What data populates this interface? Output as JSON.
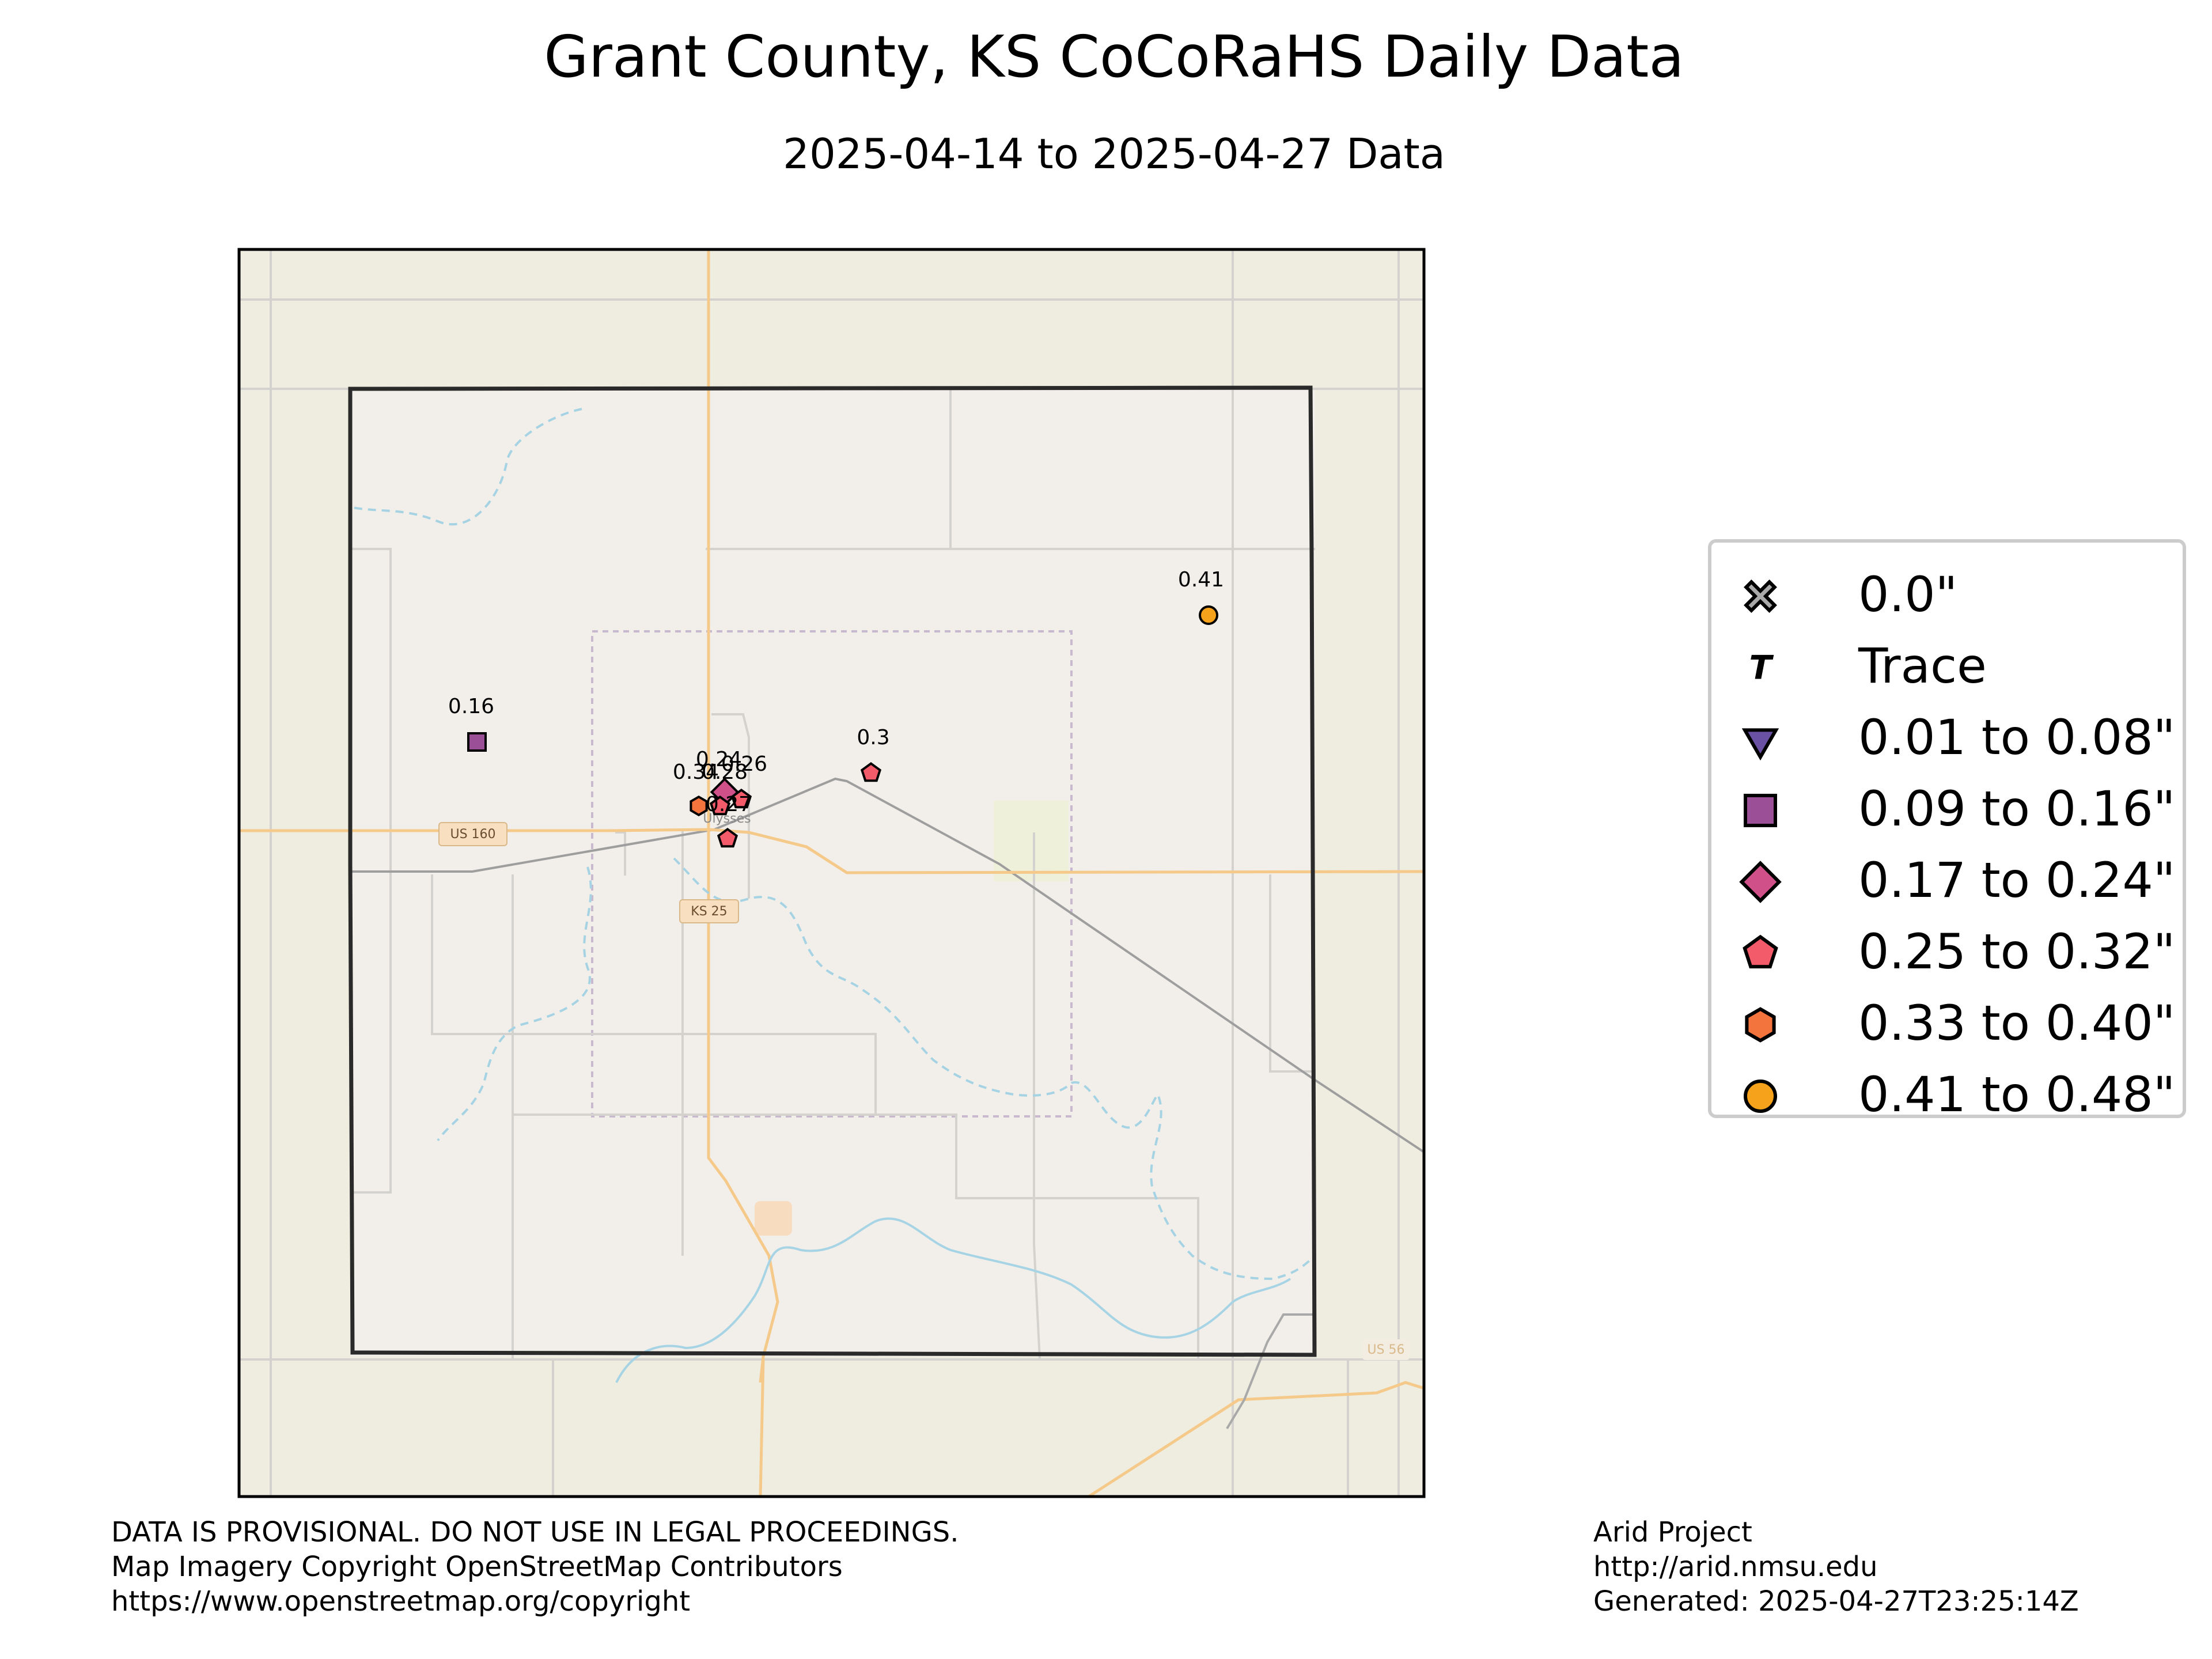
{
  "title": "Grant County, KS CoCoRaHS Daily Data",
  "subtitle": "2025-04-14 to 2025-04-27 Data",
  "map": {
    "road_labels": [
      "US 160",
      "KS 25",
      "US 56"
    ],
    "place_labels": [
      "Ulysses"
    ],
    "stations": [
      {
        "value": 0.41,
        "label": "0.41",
        "category": "0.41 to 0.48\""
      },
      {
        "value": 0.16,
        "label": "0.16",
        "category": "0.09 to 0.16\""
      },
      {
        "value": 0.3,
        "label": "0.3",
        "category": "0.25 to 0.32\""
      },
      {
        "value": 0.24,
        "label": "0.24",
        "category": "0.17 to 0.24\""
      },
      {
        "value": 0.26,
        "label": "0.26",
        "category": "0.25 to 0.32\""
      },
      {
        "value": 0.34,
        "label": "0.34",
        "category": "0.33 to 0.40\""
      },
      {
        "value": 0.28,
        "label": "0.28",
        "category": "0.25 to 0.32\""
      },
      {
        "value": 0.27,
        "label": "0.27",
        "category": "0.25 to 0.32\""
      }
    ]
  },
  "legend": {
    "items": [
      {
        "label": "0.0\"",
        "symbol": "x-cross",
        "color": "#a9a9a9"
      },
      {
        "label": "Trace",
        "symbol": "T",
        "color": "#000000"
      },
      {
        "label": "0.01 to 0.08\"",
        "symbol": "triangle-down",
        "color": "#6a51a3"
      },
      {
        "label": "0.09 to 0.16\"",
        "symbol": "square",
        "color": "#9b4f96"
      },
      {
        "label": "0.17 to 0.24\"",
        "symbol": "diamond",
        "color": "#d0508a"
      },
      {
        "label": "0.25 to 0.32\"",
        "symbol": "pentagon",
        "color": "#f35b6b"
      },
      {
        "label": "0.33 to 0.40\"",
        "symbol": "hexagon",
        "color": "#f4743e"
      },
      {
        "label": "0.41 to 0.48\"",
        "symbol": "circle",
        "color": "#f7a21b"
      }
    ]
  },
  "footer": {
    "left": [
      "DATA IS PROVISIONAL. DO NOT USE IN LEGAL PROCEEDINGS.",
      "Map Imagery Copyright OpenStreetMap Contributors",
      "https://www.openstreetmap.org/copyright"
    ],
    "right": [
      "Arid Project",
      "http://arid.nmsu.edu",
      "Generated: 2025-04-27T23:25:14Z"
    ]
  }
}
